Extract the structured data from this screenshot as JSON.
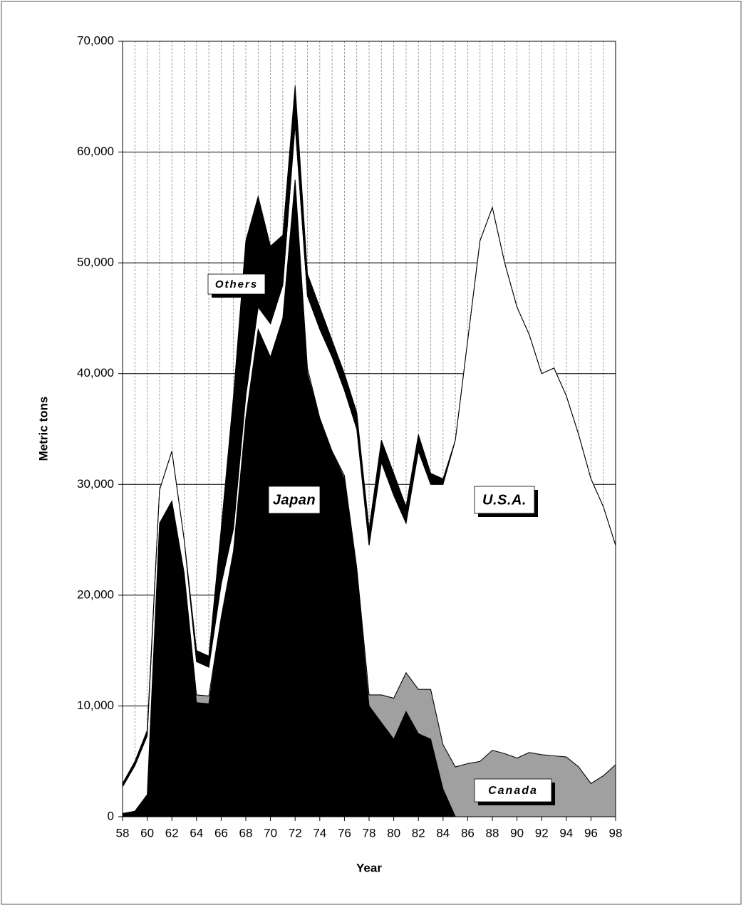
{
  "chart_data": {
    "type": "stacked_area",
    "xlabel": "Year",
    "ylabel": "Metric tons",
    "x": [
      58,
      59,
      60,
      61,
      62,
      63,
      64,
      65,
      66,
      67,
      68,
      69,
      70,
      71,
      72,
      73,
      74,
      75,
      76,
      77,
      78,
      79,
      80,
      81,
      82,
      83,
      84,
      85,
      86,
      87,
      88,
      89,
      90,
      91,
      92,
      93,
      94,
      95,
      96,
      97,
      98
    ],
    "xlim": [
      58,
      98
    ],
    "xticks": [
      58,
      60,
      62,
      64,
      66,
      68,
      70,
      72,
      74,
      76,
      78,
      80,
      82,
      84,
      86,
      88,
      90,
      92,
      94,
      96,
      98
    ],
    "ylim": [
      0,
      70000
    ],
    "yticks": [
      0,
      {
        "value": 10000,
        "label": "10,000"
      },
      {
        "value": 20000,
        "label": "20,000"
      },
      {
        "value": 30000,
        "label": "30,000"
      },
      {
        "value": 40000,
        "label": "40,000"
      },
      {
        "value": 50000,
        "label": "50,000"
      },
      {
        "value": 60000,
        "label": "60,000"
      },
      {
        "value": 70000,
        "label": "70,000"
      }
    ],
    "grid": true,
    "series": [
      {
        "name": "Japan",
        "color": "#000000",
        "values": [
          300,
          500,
          2000,
          26500,
          28500,
          22000,
          10300,
          10200,
          18000,
          24000,
          36000,
          44000,
          41500,
          45000,
          57500,
          40000,
          36000,
          33000,
          30500,
          22000,
          10000,
          8500,
          7000,
          9500,
          7500,
          7000,
          2500,
          0,
          0,
          0,
          0,
          0,
          0,
          0,
          0,
          0,
          0,
          0,
          0,
          0,
          0
        ]
      },
      {
        "name": "Canada",
        "color": "#a0a0a0",
        "values": [
          0,
          0,
          0,
          0,
          0,
          0,
          700,
          700,
          0,
          0,
          0,
          0,
          0,
          0,
          0,
          500,
          0,
          0,
          300,
          500,
          1000,
          2500,
          3700,
          3500,
          4000,
          4500,
          4000,
          4500,
          4800,
          5000,
          6000,
          5700,
          5300,
          5800,
          5600,
          5500,
          5400,
          4500,
          3000,
          3700,
          4700
        ]
      },
      {
        "name": "U.S.A.",
        "color": "#ffffff",
        "values": [
          2400,
          4100,
          5300,
          3000,
          4500,
          3000,
          3000,
          2600,
          3000,
          2000,
          2000,
          2000,
          3000,
          3000,
          5000,
          6500,
          8000,
          8500,
          7700,
          12500,
          13500,
          21000,
          18300,
          13500,
          21500,
          18500,
          23500,
          29500,
          38200,
          47000,
          49000,
          44300,
          40700,
          37700,
          34400,
          35000,
          32600,
          30000,
          27500,
          24300,
          19800
        ]
      },
      {
        "name": "Others",
        "color": "#000000",
        "values": [
          300,
          400,
          500,
          0,
          0,
          0,
          1000,
          1000,
          5000,
          12000,
          14000,
          10000,
          7000,
          4500,
          3500,
          2000,
          2000,
          1500,
          1500,
          1500,
          1500,
          2000,
          2000,
          1500,
          1500,
          1000,
          500,
          0,
          0,
          0,
          0,
          0,
          0,
          0,
          0,
          0,
          0,
          0,
          0,
          0,
          0
        ]
      }
    ]
  }
}
